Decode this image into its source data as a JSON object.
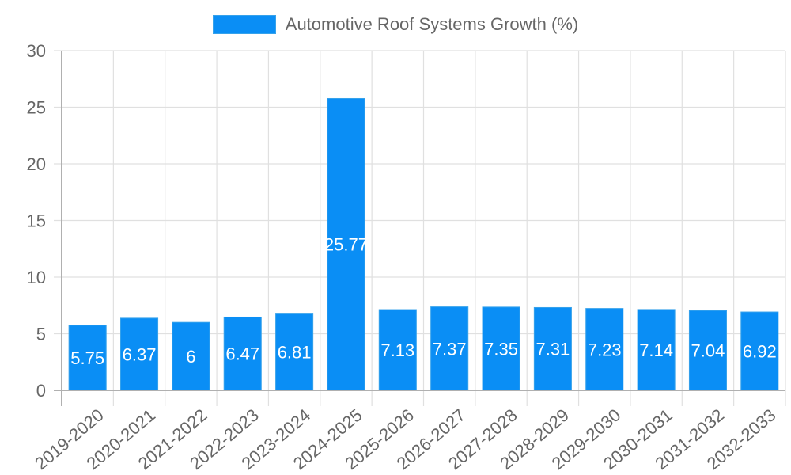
{
  "legend": {
    "label": "Automotive Roof Systems Growth (%)",
    "color": "#0a8ef5"
  },
  "chart_data": {
    "type": "bar",
    "title": "",
    "xlabel": "",
    "ylabel": "",
    "ylim": [
      0,
      30
    ],
    "yticks": [
      0,
      5,
      10,
      15,
      20,
      25,
      30
    ],
    "grid": true,
    "legend_position": "top",
    "categories": [
      "2019-2020",
      "2020-2021",
      "2021-2022",
      "2022-2023",
      "2023-2024",
      "2024-2025",
      "2025-2026",
      "2026-2027",
      "2027-2028",
      "2028-2029",
      "2029-2030",
      "2030-2031",
      "2031-2032",
      "2032-2033"
    ],
    "series": [
      {
        "name": "Automotive Roof Systems Growth (%)",
        "color": "#0a8ef5",
        "values": [
          5.75,
          6.37,
          6,
          6.47,
          6.81,
          25.77,
          7.13,
          7.37,
          7.35,
          7.31,
          7.23,
          7.14,
          7.04,
          6.92
        ],
        "labels": [
          "5.75",
          "6.37",
          "6",
          "6.47",
          "6.81",
          "25.77",
          "7.13",
          "7.37",
          "7.35",
          "7.31",
          "7.23",
          "7.14",
          "7.04",
          "6.92"
        ]
      }
    ]
  }
}
